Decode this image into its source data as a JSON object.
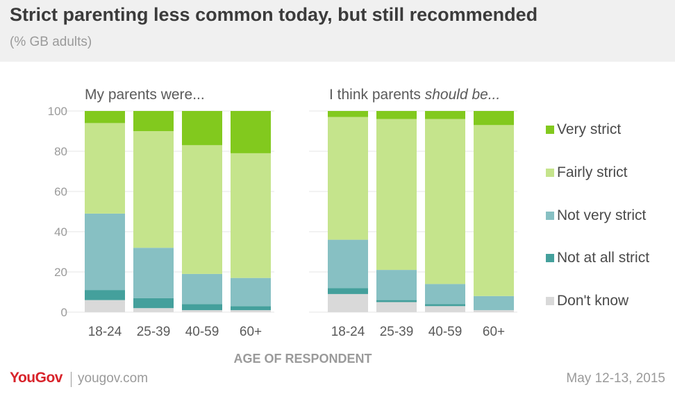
{
  "header": {
    "title": "Strict parenting less common today, but still recommended",
    "subtitle": "(% GB adults)"
  },
  "footer": {
    "logo": "YouGov",
    "site": "yougov.com",
    "date": "May 12-13, 2015"
  },
  "legend": [
    {
      "label": "Very strict",
      "color": "#82c91e"
    },
    {
      "label": "Fairly strict",
      "color": "#c5e48c"
    },
    {
      "label": "Not very strict",
      "color": "#87c0c3"
    },
    {
      "label": "Not at all strict",
      "color": "#44a09c"
    },
    {
      "label": "Don't know",
      "color": "#d9d9d9"
    }
  ],
  "chart_data": [
    {
      "type": "bar",
      "stacked": true,
      "title": "My parents were...",
      "title_prefix": "My parents were...",
      "title_emphasis": "",
      "categories": [
        "18-24",
        "25-39",
        "40-59",
        "60+"
      ],
      "xlabel": "AGE OF RESPONDENT",
      "ylabel": "",
      "ylim": [
        0,
        100
      ],
      "yticks": [
        0,
        20,
        40,
        60,
        80,
        100
      ],
      "grid": true,
      "legend_position": "right",
      "series": [
        {
          "name": "Don't know",
          "color": "#d9d9d9",
          "values": [
            6,
            2,
            1,
            1
          ]
        },
        {
          "name": "Not at all strict",
          "color": "#44a09c",
          "values": [
            5,
            5,
            3,
            2
          ]
        },
        {
          "name": "Not very strict",
          "color": "#87c0c3",
          "values": [
            38,
            25,
            15,
            14
          ]
        },
        {
          "name": "Fairly strict",
          "color": "#c5e48c",
          "values": [
            45,
            58,
            64,
            62
          ]
        },
        {
          "name": "Very strict",
          "color": "#82c91e",
          "values": [
            6,
            10,
            17,
            21
          ]
        }
      ]
    },
    {
      "type": "bar",
      "stacked": true,
      "title": "I think parents should be...",
      "title_prefix": "I think parents ",
      "title_emphasis": "should be...",
      "categories": [
        "18-24",
        "25-39",
        "40-59",
        "60+"
      ],
      "xlabel": "AGE OF RESPONDENT",
      "ylabel": "",
      "ylim": [
        0,
        100
      ],
      "grid": true,
      "legend_position": "right",
      "series": [
        {
          "name": "Don't know",
          "color": "#d9d9d9",
          "values": [
            9,
            5,
            3,
            1
          ]
        },
        {
          "name": "Not at all strict",
          "color": "#44a09c",
          "values": [
            3,
            1,
            1,
            0
          ]
        },
        {
          "name": "Not very strict",
          "color": "#87c0c3",
          "values": [
            24,
            15,
            10,
            7
          ]
        },
        {
          "name": "Fairly strict",
          "color": "#c5e48c",
          "values": [
            61,
            75,
            82,
            85
          ]
        },
        {
          "name": "Very strict",
          "color": "#82c91e",
          "values": [
            3,
            4,
            4,
            7
          ]
        }
      ]
    }
  ]
}
